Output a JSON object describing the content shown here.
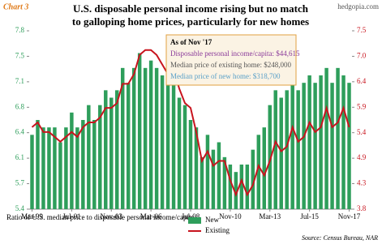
{
  "chart_data": {
    "type": "bar",
    "label": "Chart 3",
    "watermark": "hedgopia.com",
    "title": [
      "U.S. disposable personal income rising but no match",
      "to galloping home prices, particularly for new homes"
    ],
    "annotation": [
      "As of Nov '17",
      "Disposable personal income/capita: $44,615",
      "Median price of existing home: $248,000",
      "Median price of new home: $318,700"
    ],
    "legend_title": "Ratio of U.S. median price to disposable personal income/capita:",
    "source": "Source: Census Bureau, NAR",
    "categories": [
      "Mar-99",
      null,
      null,
      null,
      null,
      null,
      null,
      "Jul-01",
      null,
      null,
      null,
      null,
      null,
      null,
      "Nov-03",
      null,
      null,
      null,
      null,
      null,
      null,
      "Mar-06",
      null,
      null,
      null,
      null,
      null,
      null,
      "Jul-08",
      null,
      null,
      null,
      null,
      null,
      null,
      "Nov-10",
      null,
      null,
      null,
      null,
      null,
      null,
      "Mar-13",
      null,
      null,
      null,
      null,
      null,
      null,
      "Jul-15",
      null,
      null,
      null,
      null,
      null,
      null,
      "Nov-17"
    ],
    "series": [
      {
        "name": "New",
        "type": "bar",
        "color": "#2e9e5b",
        "values": [
          6.4,
          6.6,
          6.5,
          6.5,
          6.5,
          6.3,
          6.5,
          6.7,
          6.5,
          6.6,
          6.8,
          6.6,
          6.8,
          7.0,
          6.9,
          7.0,
          7.3,
          7.1,
          7.3,
          7.5,
          7.3,
          7.4,
          7.3,
          7.2,
          7.1,
          7.2,
          6.9,
          6.8,
          6.6,
          6.5,
          6.1,
          6.4,
          6.2,
          6.3,
          6.1,
          6.0,
          5.9,
          6.0,
          6.0,
          6.2,
          6.4,
          6.5,
          6.8,
          7.0,
          6.9,
          7.0,
          7.2,
          7.0,
          7.1,
          7.2,
          7.1,
          7.2,
          7.3,
          7.1,
          7.3,
          7.2,
          7.1
        ]
      },
      {
        "name": "Existing",
        "type": "line",
        "axis": "y2",
        "color": "#c8141e",
        "values": [
          5.5,
          5.6,
          5.4,
          5.4,
          5.3,
          5.2,
          5.3,
          5.4,
          5.3,
          5.5,
          5.6,
          5.6,
          5.7,
          5.9,
          5.9,
          6.0,
          6.4,
          6.4,
          6.6,
          7.0,
          7.1,
          7.1,
          7.0,
          6.8,
          6.6,
          6.7,
          6.3,
          6.0,
          5.9,
          5.4,
          4.8,
          5.0,
          4.7,
          4.8,
          4.8,
          4.4,
          4.1,
          4.4,
          4.1,
          4.3,
          4.7,
          4.5,
          4.8,
          5.2,
          5.0,
          5.1,
          5.5,
          5.2,
          5.3,
          5.6,
          5.4,
          5.5,
          5.9,
          5.5,
          5.6,
          5.9,
          5.5
        ]
      }
    ],
    "ylim": [
      5.4,
      7.8
    ],
    "yticks": [
      {
        "value": 5.4,
        "label": "5.4"
      },
      {
        "value": 5.743,
        "label": "5.7"
      },
      {
        "value": 6.086,
        "label": "6.1"
      },
      {
        "value": 6.429,
        "label": "6.4"
      },
      {
        "value": 6.771,
        "label": "6.8"
      },
      {
        "value": 7.114,
        "label": "7.1"
      },
      {
        "value": 7.457,
        "label": "7.5"
      },
      {
        "value": 7.8,
        "label": "7.8"
      }
    ],
    "y2lim": [
      3.8,
      7.5
    ],
    "y2ticks": [
      {
        "value": 3.8,
        "label": "3.8"
      },
      {
        "value": 4.329,
        "label": "4.3"
      },
      {
        "value": 4.857,
        "label": "4.9"
      },
      {
        "value": 5.386,
        "label": "5.4"
      },
      {
        "value": 5.914,
        "label": "5.9"
      },
      {
        "value": 6.443,
        "label": "6.4"
      },
      {
        "value": 6.971,
        "label": "7.0"
      },
      {
        "value": 7.5,
        "label": "7.5"
      }
    ],
    "ytick_color": "#2e9e5b",
    "y2tick_color": "#c8141e"
  }
}
